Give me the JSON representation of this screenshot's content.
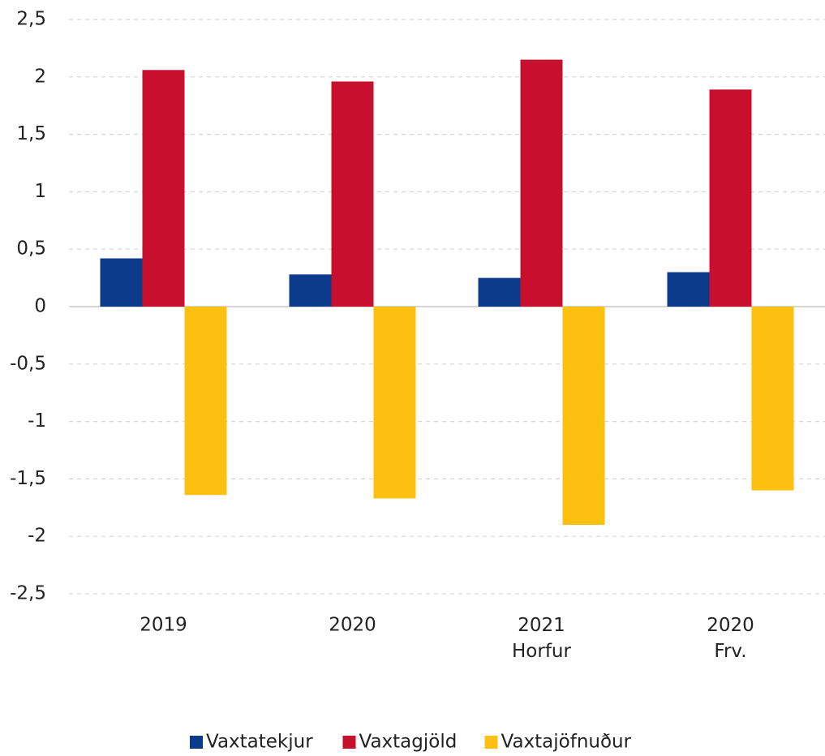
{
  "chart_data": {
    "type": "bar",
    "categories": [
      "2019",
      "2020",
      "2021\nHorfur",
      "2020\nFrv."
    ],
    "series": [
      {
        "name": "Vaxtatekjur",
        "color": "#0b3b8a",
        "values": [
          0.42,
          0.28,
          0.25,
          0.3
        ]
      },
      {
        "name": "Vaxtagjöld",
        "color": "#c8102e",
        "values": [
          2.06,
          1.96,
          2.15,
          1.89
        ]
      },
      {
        "name": "Vaxtajöfnuður",
        "color": "#fdc010",
        "values": [
          -1.64,
          -1.67,
          -1.9,
          -1.6
        ]
      }
    ],
    "ylim": [
      -2.5,
      2.5
    ],
    "yticks": [
      {
        "value": -2.5,
        "label": "-2,5"
      },
      -2,
      {
        "value": -1.5,
        "label": "-1,5"
      },
      -1,
      {
        "value": -0.5,
        "label": "-0,5"
      },
      0,
      {
        "value": 0.5,
        "label": "0,5"
      },
      1,
      {
        "value": 1.5,
        "label": "1,5"
      },
      2,
      {
        "value": 2.5,
        "label": "2,5"
      }
    ],
    "grid": true,
    "legend": "bottom"
  }
}
